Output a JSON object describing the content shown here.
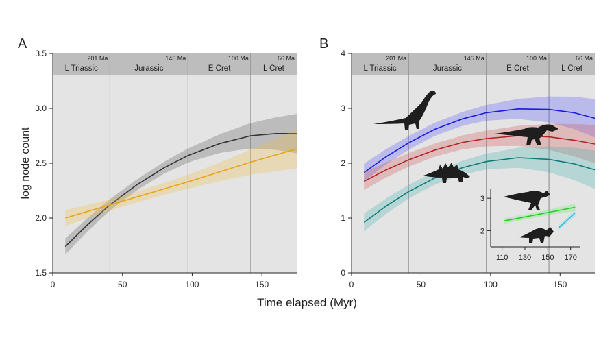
{
  "chart_data": [
    {
      "panel_label": "A",
      "type": "line",
      "ylabel": "log node count",
      "xlim": [
        0,
        175
      ],
      "ylim": [
        1.5,
        3.5
      ],
      "xticks": [
        0,
        50,
        100,
        150
      ],
      "yticks": [
        "1.5",
        "2.0",
        "2.5",
        "3.0",
        "3.5"
      ],
      "periods": [
        {
          "name": "L Triassic",
          "age": "201 Ma",
          "start": 0,
          "end": 41
        },
        {
          "name": "Jurassic",
          "age": "145 Ma",
          "start": 41,
          "end": 97
        },
        {
          "name": "E Cret",
          "age": "100 Ma",
          "start": 97,
          "end": 142
        },
        {
          "name": "L Cret",
          "age": "66 Ma",
          "start": 142,
          "end": 175
        }
      ],
      "series": [
        {
          "color": "#333333",
          "band_color": "#555555",
          "x": [
            9,
            25,
            41,
            60,
            80,
            97,
            120,
            142,
            160,
            175
          ],
          "y": [
            1.74,
            1.94,
            2.12,
            2.3,
            2.46,
            2.57,
            2.68,
            2.75,
            2.77,
            2.77
          ]
        },
        {
          "color": "#e8a317",
          "band_color": "#f0c040",
          "x": [
            9,
            41,
            97,
            142,
            175
          ],
          "y": [
            2.0,
            2.12,
            2.33,
            2.51,
            2.63
          ]
        }
      ]
    },
    {
      "panel_label": "B",
      "type": "line",
      "xlim": [
        0,
        175
      ],
      "ylim": [
        0,
        4
      ],
      "xticks": [
        0,
        50,
        100,
        150
      ],
      "yticks": [
        "0",
        "1",
        "2",
        "3",
        "4"
      ],
      "periods": [
        {
          "name": "L Triassic",
          "age": "201 Ma",
          "start": 0,
          "end": 41
        },
        {
          "name": "Jurassic",
          "age": "145 Ma",
          "start": 41,
          "end": 97
        },
        {
          "name": "E Cret",
          "age": "100 Ma",
          "start": 97,
          "end": 142
        },
        {
          "name": "L Cret",
          "age": "66 Ma",
          "start": 142,
          "end": 175
        }
      ],
      "series": [
        {
          "color": "#1a1adf",
          "band_color": "#5050ff",
          "x": [
            9,
            25,
            41,
            60,
            80,
            97,
            120,
            142,
            160,
            175
          ],
          "y": [
            1.83,
            2.12,
            2.37,
            2.62,
            2.81,
            2.92,
            2.99,
            2.98,
            2.92,
            2.82
          ]
        },
        {
          "color": "#b22222",
          "band_color": "#d05050",
          "x": [
            9,
            25,
            41,
            60,
            80,
            97,
            120,
            142,
            160,
            175
          ],
          "y": [
            1.67,
            1.88,
            2.06,
            2.24,
            2.38,
            2.45,
            2.5,
            2.48,
            2.42,
            2.35
          ]
        },
        {
          "color": "#137a7a",
          "band_color": "#40b0b0",
          "x": [
            9,
            25,
            41,
            60,
            80,
            97,
            120,
            142,
            160,
            175
          ],
          "y": [
            0.92,
            1.22,
            1.48,
            1.73,
            1.92,
            2.03,
            2.1,
            2.07,
            1.99,
            1.88
          ]
        }
      ],
      "inset": {
        "xlim": [
          100,
          178
        ],
        "ylim": [
          1.5,
          3.3
        ],
        "xticks": [
          "110",
          "130",
          "150",
          "170"
        ],
        "yticks": [
          "2",
          "3"
        ],
        "series": [
          {
            "color": "#22cc22",
            "band_color": "#66ee66",
            "x": [
              112,
              174
            ],
            "y": [
              2.3,
              2.72
            ]
          },
          {
            "color": "#22bbdd",
            "band_color": "#66ddee",
            "x": [
              160,
              174
            ],
            "y": [
              2.1,
              2.55
            ]
          }
        ]
      }
    }
  ],
  "shared_xlabel": "Time elapsed (Myr)",
  "silhouettes": [
    "sauropod",
    "theropod",
    "stegosaur",
    "hadrosaur",
    "ceratopsian"
  ]
}
